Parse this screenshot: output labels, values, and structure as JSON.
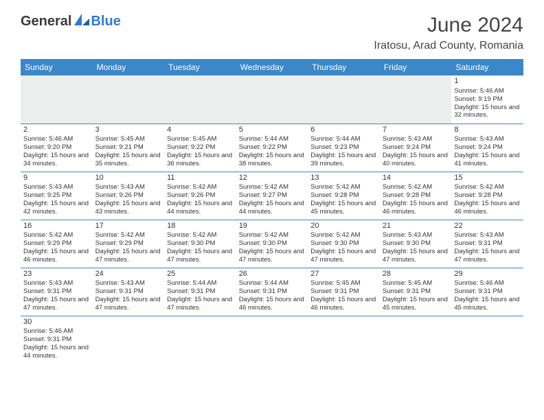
{
  "logo": {
    "part1": "General",
    "part2": "Blue"
  },
  "title": "June 2024",
  "location": "Iratosu, Arad County, Romania",
  "colors": {
    "header_bg": "#3b87c8",
    "header_fg": "#ffffff",
    "row_border": "#3b87c8",
    "logo_dark": "#3a3a3a",
    "logo_blue": "#2e7cd1",
    "text": "#333333",
    "empty_bg": "#eceeee"
  },
  "days": [
    "Sunday",
    "Monday",
    "Tuesday",
    "Wednesday",
    "Thursday",
    "Friday",
    "Saturday"
  ],
  "weeks": [
    [
      null,
      null,
      null,
      null,
      null,
      null,
      {
        "n": "1",
        "sr": "5:46 AM",
        "ss": "9:19 PM",
        "dl": "15 hours and 32 minutes."
      }
    ],
    [
      {
        "n": "2",
        "sr": "5:46 AM",
        "ss": "9:20 PM",
        "dl": "15 hours and 34 minutes."
      },
      {
        "n": "3",
        "sr": "5:45 AM",
        "ss": "9:21 PM",
        "dl": "15 hours and 35 minutes."
      },
      {
        "n": "4",
        "sr": "5:45 AM",
        "ss": "9:22 PM",
        "dl": "15 hours and 36 minutes."
      },
      {
        "n": "5",
        "sr": "5:44 AM",
        "ss": "9:22 PM",
        "dl": "15 hours and 38 minutes."
      },
      {
        "n": "6",
        "sr": "5:44 AM",
        "ss": "9:23 PM",
        "dl": "15 hours and 39 minutes."
      },
      {
        "n": "7",
        "sr": "5:43 AM",
        "ss": "9:24 PM",
        "dl": "15 hours and 40 minutes."
      },
      {
        "n": "8",
        "sr": "5:43 AM",
        "ss": "9:24 PM",
        "dl": "15 hours and 41 minutes."
      }
    ],
    [
      {
        "n": "9",
        "sr": "5:43 AM",
        "ss": "9:25 PM",
        "dl": "15 hours and 42 minutes."
      },
      {
        "n": "10",
        "sr": "5:43 AM",
        "ss": "9:26 PM",
        "dl": "15 hours and 43 minutes."
      },
      {
        "n": "11",
        "sr": "5:42 AM",
        "ss": "9:26 PM",
        "dl": "15 hours and 44 minutes."
      },
      {
        "n": "12",
        "sr": "5:42 AM",
        "ss": "9:27 PM",
        "dl": "15 hours and 44 minutes."
      },
      {
        "n": "13",
        "sr": "5:42 AM",
        "ss": "9:28 PM",
        "dl": "15 hours and 45 minutes."
      },
      {
        "n": "14",
        "sr": "5:42 AM",
        "ss": "9:28 PM",
        "dl": "15 hours and 46 minutes."
      },
      {
        "n": "15",
        "sr": "5:42 AM",
        "ss": "9:28 PM",
        "dl": "15 hours and 46 minutes."
      }
    ],
    [
      {
        "n": "16",
        "sr": "5:42 AM",
        "ss": "9:29 PM",
        "dl": "15 hours and 46 minutes."
      },
      {
        "n": "17",
        "sr": "5:42 AM",
        "ss": "9:29 PM",
        "dl": "15 hours and 47 minutes."
      },
      {
        "n": "18",
        "sr": "5:42 AM",
        "ss": "9:30 PM",
        "dl": "15 hours and 47 minutes."
      },
      {
        "n": "19",
        "sr": "5:42 AM",
        "ss": "9:30 PM",
        "dl": "15 hours and 47 minutes."
      },
      {
        "n": "20",
        "sr": "5:42 AM",
        "ss": "9:30 PM",
        "dl": "15 hours and 47 minutes."
      },
      {
        "n": "21",
        "sr": "5:43 AM",
        "ss": "9:30 PM",
        "dl": "15 hours and 47 minutes."
      },
      {
        "n": "22",
        "sr": "5:43 AM",
        "ss": "9:31 PM",
        "dl": "15 hours and 47 minutes."
      }
    ],
    [
      {
        "n": "23",
        "sr": "5:43 AM",
        "ss": "9:31 PM",
        "dl": "15 hours and 47 minutes."
      },
      {
        "n": "24",
        "sr": "5:43 AM",
        "ss": "9:31 PM",
        "dl": "15 hours and 47 minutes."
      },
      {
        "n": "25",
        "sr": "5:44 AM",
        "ss": "9:31 PM",
        "dl": "15 hours and 47 minutes."
      },
      {
        "n": "26",
        "sr": "5:44 AM",
        "ss": "9:31 PM",
        "dl": "15 hours and 46 minutes."
      },
      {
        "n": "27",
        "sr": "5:45 AM",
        "ss": "9:31 PM",
        "dl": "15 hours and 46 minutes."
      },
      {
        "n": "28",
        "sr": "5:45 AM",
        "ss": "9:31 PM",
        "dl": "15 hours and 45 minutes."
      },
      {
        "n": "29",
        "sr": "5:46 AM",
        "ss": "9:31 PM",
        "dl": "15 hours and 45 minutes."
      }
    ],
    [
      {
        "n": "30",
        "sr": "5:46 AM",
        "ss": "9:31 PM",
        "dl": "15 hours and 44 minutes."
      },
      null,
      null,
      null,
      null,
      null,
      null
    ]
  ],
  "labels": {
    "sunrise": "Sunrise:",
    "sunset": "Sunset:",
    "daylight": "Daylight:"
  }
}
